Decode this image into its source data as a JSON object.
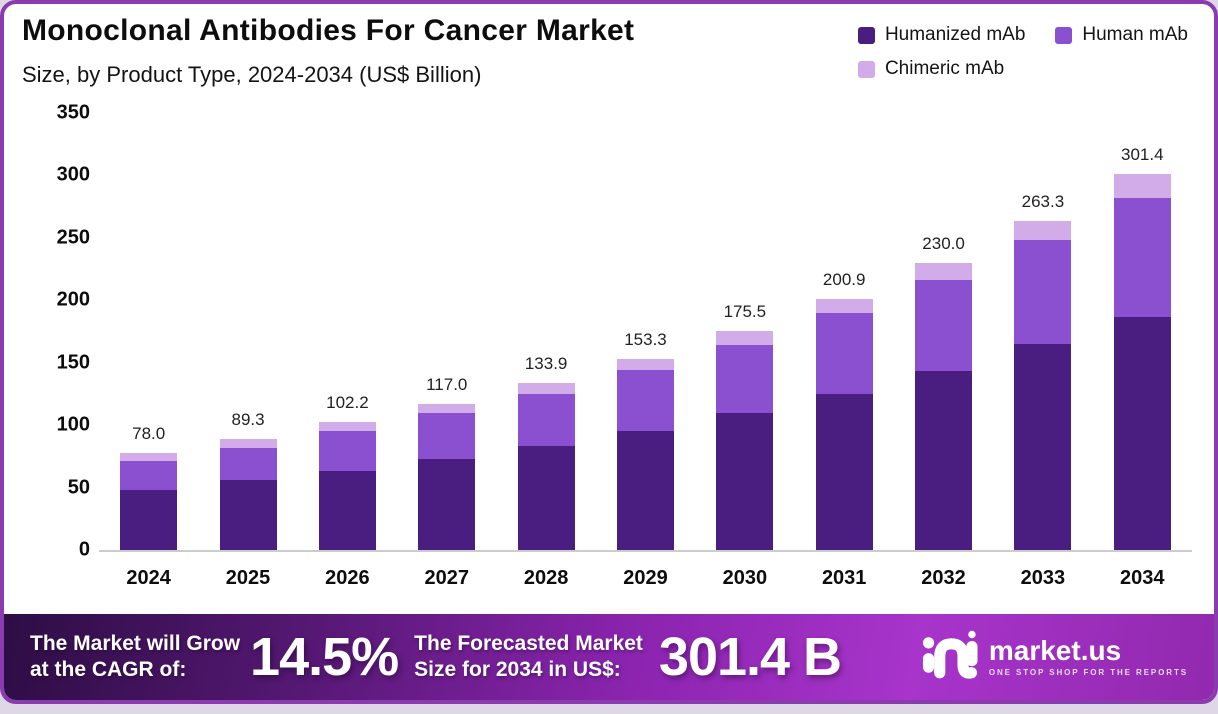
{
  "header": {
    "title": "Monoclonal Antibodies For Cancer Market",
    "subtitle": "Size, by Product Type, 2024-2034 (US$ Billion)"
  },
  "chart_data": {
    "type": "bar",
    "stacked": true,
    "title": "Monoclonal Antibodies For Cancer Market Size, by Product Type, 2024-2034 (US$ Billion)",
    "categories": [
      "2024",
      "2025",
      "2026",
      "2027",
      "2028",
      "2029",
      "2030",
      "2031",
      "2032",
      "2033",
      "2034"
    ],
    "series": [
      {
        "name": "Humanized mAb",
        "color": "#4a1d80",
        "values": [
          48.0,
          55.9,
          63.5,
          72.7,
          83.7,
          95.3,
          109.5,
          125.1,
          143.5,
          165.1,
          186.9
        ]
      },
      {
        "name": "Human mAb",
        "color": "#8b50cf",
        "values": [
          23.5,
          26.2,
          31.9,
          36.9,
          41.6,
          48.6,
          54.8,
          64.4,
          73.1,
          82.9,
          94.8
        ]
      },
      {
        "name": "Chimeric mAb",
        "color": "#d2abe9",
        "values": [
          6.5,
          7.2,
          6.8,
          7.4,
          8.6,
          9.4,
          11.2,
          11.4,
          13.4,
          15.3,
          19.7
        ]
      }
    ],
    "totals": [
      "78.0",
      "89.3",
      "102.2",
      "117.0",
      "133.9",
      "153.3",
      "175.5",
      "200.9",
      "230.0",
      "263.3",
      "301.4"
    ],
    "yticks": [
      0,
      50,
      100,
      150,
      200,
      250,
      300,
      350
    ],
    "ylim": [
      0,
      350
    ],
    "xlabel": "",
    "ylabel": "",
    "grid": false,
    "legend_position": "top-right"
  },
  "banner": {
    "cagr_label_line1": "The Market will Grow",
    "cagr_label_line2": "at the CAGR of:",
    "cagr_value": "14.5%",
    "forecast_label_line1": "The Forecasted Market",
    "forecast_label_line2": "Size for 2034 in US$:",
    "forecast_value": "301.4 B",
    "logo": {
      "name": "market.us",
      "tagline": "ONE STOP SHOP FOR THE REPORTS"
    }
  },
  "colors": {
    "border": "#8a3bb0",
    "banner_gradient_start": "#2d0d44",
    "banner_gradient_end": "#9129ae",
    "background": "#ffffff"
  }
}
